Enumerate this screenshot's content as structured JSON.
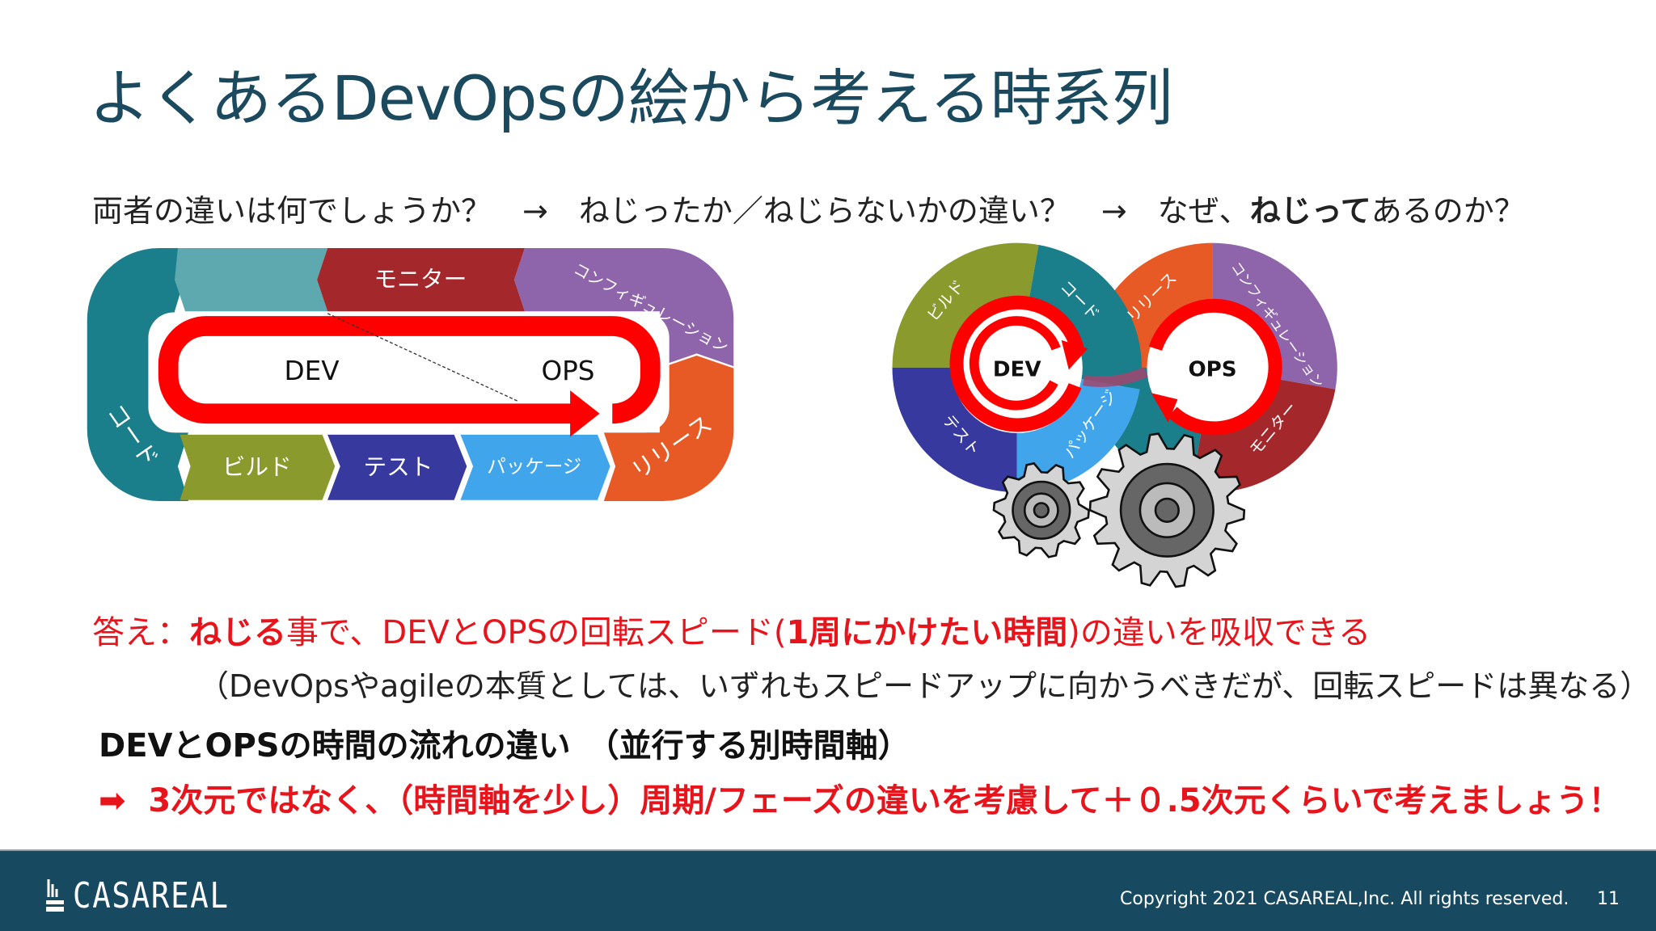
{
  "title": "よくあるDevOpsの絵から考える時系列",
  "question": {
    "part1": "両者の違いは何でしょうか？　→　ねじったか／ねじらないかの違い？　→　なぜ、",
    "bold": "ねじって",
    "part2": "あるのか？"
  },
  "left_diagram": {
    "dev": "DEV",
    "ops": "OPS",
    "monitor": "モニター",
    "config": "コンフィギュレーション",
    "code": "コード",
    "build": "ビルド",
    "test": "テスト",
    "package": "パッケージ",
    "release": "リリース"
  },
  "right_diagram": {
    "dev": "DEV",
    "ops": "OPS",
    "build": "ビルド",
    "code": "コード",
    "test": "テスト",
    "package": "パッケージ",
    "release": "リリース",
    "config": "コンフィギュレーション",
    "monitor": "モニター"
  },
  "answer": {
    "prefix": "答え：",
    "bold1": "ねじる",
    "mid": "事で、DEVとOPSの回転スピード(",
    "bold2": "1周にかけたい時間",
    "suffix": ")の違いを吸収できる"
  },
  "note": "（DevOpsやagileの本質としては、いずれもスピードアップに向かうべきだが、回転スピードは異なる）",
  "heading": "DEVとOPSの時間の流れの違い　（並行する別時間軸）",
  "conclusion": {
    "arrow": "➡",
    "text": "3次元ではなく、（時間軸を少し）周期/フェーズの違いを考慮して＋０.5次元くらいで考えましょう！"
  },
  "footer": {
    "logo": "CASAREAL",
    "copyright": "Copyright 2021 CASAREAL,Inc. All rights reserved.",
    "page": "11"
  },
  "colors": {
    "title": "#1b4a5f",
    "accent_red": "#e8141b",
    "footer_bg": "#174a60",
    "code": "#1a7f8a",
    "build": "#8a9a2c",
    "test": "#37399e",
    "package": "#41a5ec",
    "release": "#e85a25",
    "config": "#8e64ab",
    "monitor": "#a4282b",
    "ops_teal": "#1a7f8a"
  }
}
